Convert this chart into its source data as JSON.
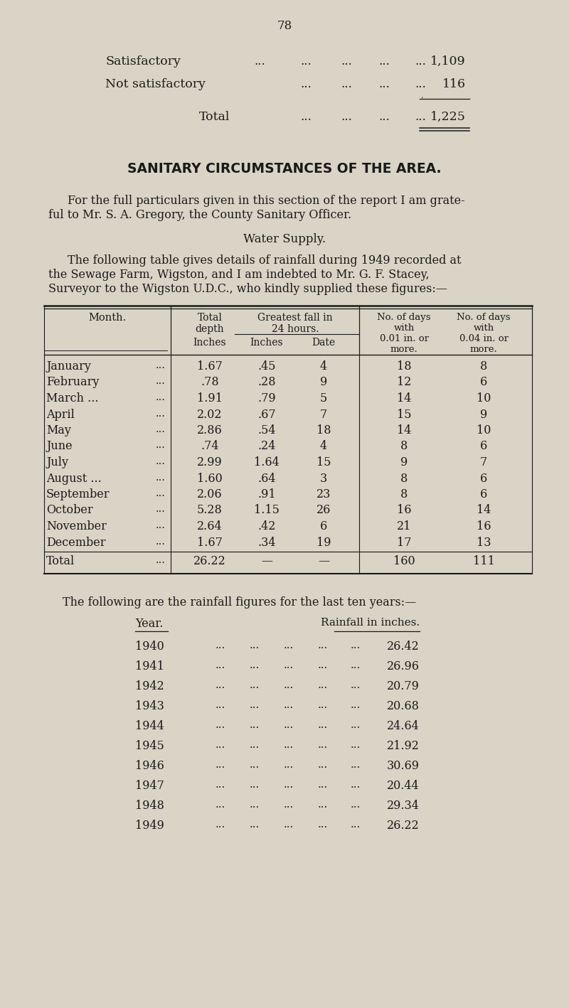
{
  "bg_color": "#d9d4c5",
  "page_number": "78",
  "satisfactory_label": "Satisfactory",
  "satisfactory_value": "1,109",
  "not_satisfactory_label": "Not satisfactory",
  "not_satisfactory_value": "116",
  "total_label": "Total",
  "total_value": "1,225",
  "section_title": "SANITARY CIRCUMSTANCES OF THE AREA.",
  "para1_line1": "For the full particulars given in this section of the report I am grate-",
  "para1_line2": "ful to Mr. S. A. Gregory, the County Sanitary Officer.",
  "water_supply_title": "Water Supply.",
  "para2_line1": "The following table gives details of rainfall during 1949 recorded at",
  "para2_line2": "the Sewage Farm, Wigston, and I am indebted to Mr. G. F. Stacey,",
  "para2_line3": "Surveyor to the Wigston U.D.C., who kindly supplied these figures:—",
  "months": [
    "January",
    "February",
    "March ...",
    "April",
    "May",
    "June",
    "July",
    "August ...",
    "September",
    "October",
    "November",
    "December"
  ],
  "month_dots": [
    "...",
    "...",
    "...",
    "...",
    "...",
    "...",
    "...",
    "...",
    "...",
    "...",
    "...",
    "..."
  ],
  "total_depth": [
    "1.67",
    ".78",
    "1.91",
    "2.02",
    "2.86",
    ".74",
    "2.99",
    "1.60",
    "2.06",
    "5.28",
    "2.64",
    "1.67"
  ],
  "greatest_inches": [
    ".45",
    ".28",
    ".79",
    ".67",
    ".54",
    ".24",
    "1.64",
    ".64",
    ".91",
    "1.15",
    ".42",
    ".34"
  ],
  "greatest_date": [
    "4",
    "9",
    "5",
    "7",
    "18",
    "4",
    "15",
    "3",
    "23",
    "26",
    "6",
    "19"
  ],
  "days_001": [
    "18",
    "12",
    "14",
    "15",
    "14",
    "8",
    "9",
    "8",
    "8",
    "16",
    "21",
    "17"
  ],
  "days_004": [
    "8",
    "6",
    "10",
    "9",
    "10",
    "6",
    "7",
    "6",
    "6",
    "14",
    "16",
    "13"
  ],
  "total_row_label": "Total",
  "total_row_dots": "...",
  "total_depth_sum": "26.22",
  "total_days_001": "160",
  "total_days_004": "111",
  "ten_year_intro": "The following are the rainfall figures for the last ten years:—",
  "year_col_header": "Year.",
  "rainfall_col_header": "Rainfall in inches.",
  "years": [
    "1940",
    "1941",
    "1942",
    "1943",
    "1944",
    "1945",
    "1946",
    "1947",
    "1948",
    "1949"
  ],
  "rainfall": [
    "26.42",
    "26.96",
    "20.79",
    "20.68",
    "24.64",
    "21.92",
    "30.69",
    "20.44",
    "29.34",
    "26.22"
  ]
}
